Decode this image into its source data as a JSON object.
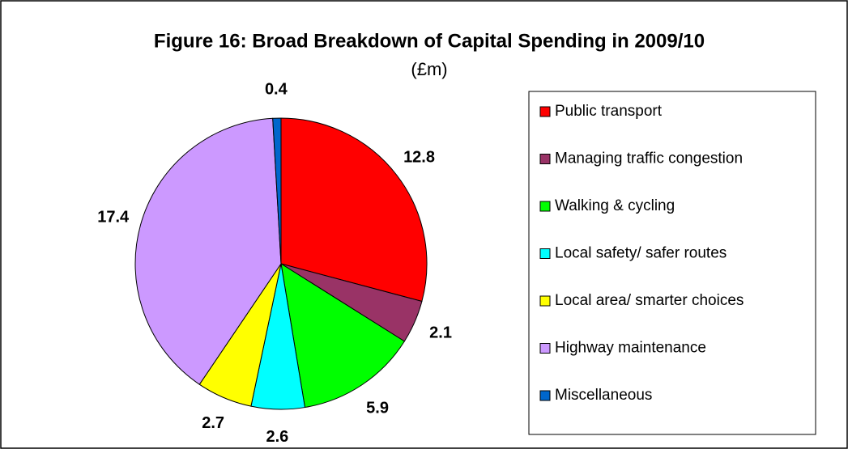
{
  "chart_data": {
    "type": "pie",
    "title": "Figure 16: Broad Breakdown of Capital Spending in 2009/10",
    "subtitle": "(£m)",
    "categories": [
      "Public transport",
      "Managing traffic congestion",
      "Walking & cycling",
      "Local safety/ safer routes",
      "Local area/ smarter choices",
      "Highway maintenance",
      "Miscellaneous"
    ],
    "values": [
      12.8,
      2.1,
      5.9,
      2.6,
      2.7,
      17.4,
      0.4
    ],
    "colors": [
      "#ff0000",
      "#993366",
      "#00ff00",
      "#00ffff",
      "#ffff00",
      "#cc99ff",
      "#0066cc"
    ],
    "legend": "right"
  }
}
